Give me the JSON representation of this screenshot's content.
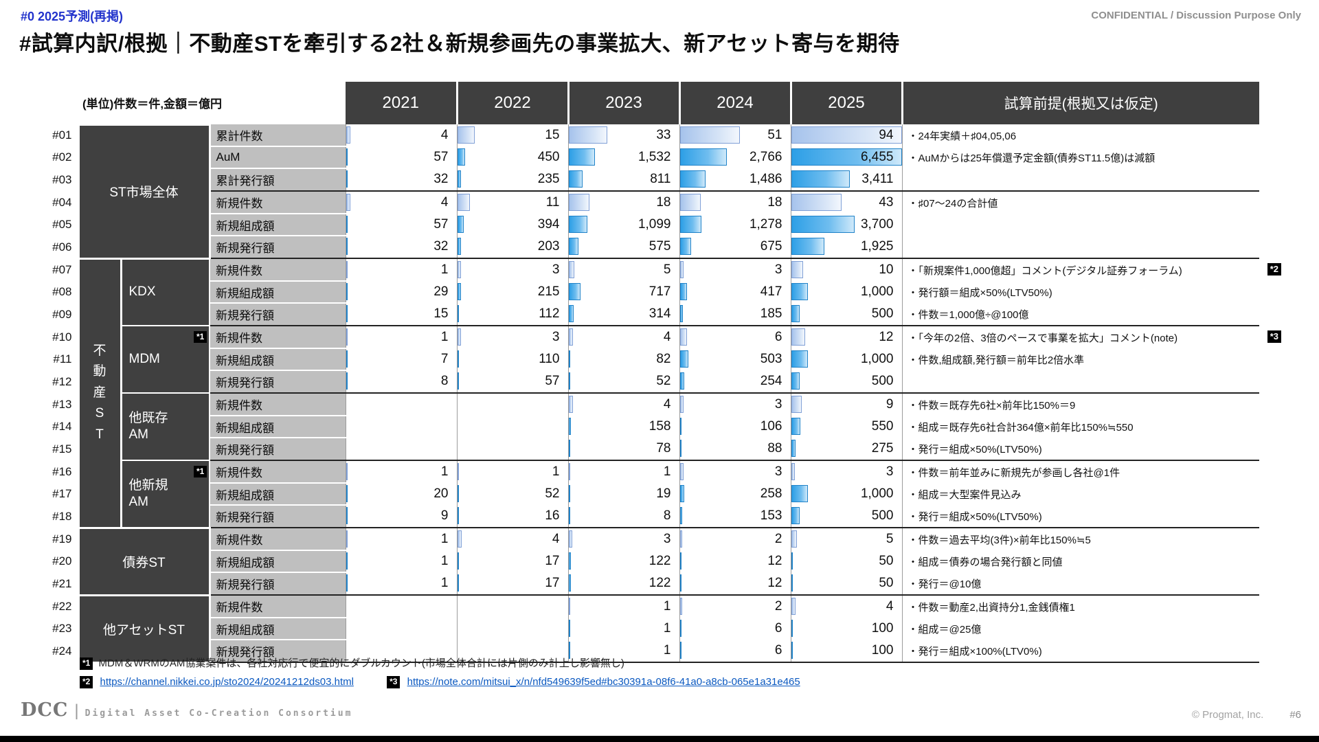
{
  "page": {
    "tag": "#0 2025予測(再掲)",
    "confidential": "CONFIDENTIAL / Discussion Purpose Only",
    "title": "#試算内訳/根拠｜不動産STを牽引する2社＆新規参画先の事業拡大、新アセット寄与を期待",
    "unit_note": "(単位)件数＝件,金額＝億円"
  },
  "table": {
    "year_headers": [
      "2021",
      "2022",
      "2023",
      "2024",
      "2025"
    ],
    "assumption_header": "試算前提(根拠又は仮定)",
    "bar_scale": {
      "count_max": 94,
      "amount_max": 6455
    },
    "bar_colors": {
      "count": "#a6c3ec",
      "amount": "#2d9fe6"
    },
    "groups": [
      {
        "label": "ST市場全体",
        "vertical": false,
        "subgroups": [
          {
            "label": null,
            "rows": [
              {
                "id": "#01",
                "metric": "累計件数",
                "kind": "count",
                "values": [
                  "4",
                  "15",
                  "33",
                  "51",
                  "94"
                ],
                "note": "・24年実績＋♯04,05,06"
              },
              {
                "id": "#02",
                "metric": "AuM",
                "kind": "amount",
                "values": [
                  "57",
                  "450",
                  "1,532",
                  "2,766",
                  "6,455"
                ],
                "note": "・AuMからは25年償還予定金額(債券ST11.5億)は減額"
              },
              {
                "id": "#03",
                "metric": "累計発行額",
                "kind": "amount",
                "values": [
                  "32",
                  "235",
                  "811",
                  "1,486",
                  "3,411"
                ],
                "note": ""
              },
              {
                "id": "#04",
                "metric": "新規件数",
                "kind": "count",
                "values": [
                  "4",
                  "11",
                  "18",
                  "18",
                  "43"
                ],
                "note": "・♯07〜24の合計値",
                "sep": true
              },
              {
                "id": "#05",
                "metric": "新規組成額",
                "kind": "amount",
                "values": [
                  "57",
                  "394",
                  "1,099",
                  "1,278",
                  "3,700"
                ],
                "note": ""
              },
              {
                "id": "#06",
                "metric": "新規発行額",
                "kind": "amount",
                "values": [
                  "32",
                  "203",
                  "575",
                  "675",
                  "1,925"
                ],
                "note": ""
              }
            ]
          }
        ]
      },
      {
        "label": "不動産ST",
        "vertical": true,
        "subgroups": [
          {
            "label": "KDX",
            "rows": [
              {
                "id": "#07",
                "metric": "新規件数",
                "kind": "count",
                "values": [
                  "1",
                  "3",
                  "5",
                  "3",
                  "10"
                ],
                "note": "・「新規案件1,000億超」コメント(デジタル証券フォーラム)",
                "note_badge": "*2"
              },
              {
                "id": "#08",
                "metric": "新規組成額",
                "kind": "amount",
                "values": [
                  "29",
                  "215",
                  "717",
                  "417",
                  "1,000"
                ],
                "note": "・発行額＝組成×50%(LTV50%)"
              },
              {
                "id": "#09",
                "metric": "新規発行額",
                "kind": "amount",
                "values": [
                  "15",
                  "112",
                  "314",
                  "185",
                  "500"
                ],
                "note": "・件数＝1,000億÷@100億"
              }
            ]
          },
          {
            "label": "MDM",
            "rows": [
              {
                "id": "#10",
                "metric": "新規件数",
                "metric_badge": "*1",
                "kind": "count",
                "values": [
                  "1",
                  "3",
                  "4",
                  "6",
                  "12"
                ],
                "note": "・「今年の2倍、3倍のペースで事業を拡大」コメント(note)",
                "note_badge": "*3"
              },
              {
                "id": "#11",
                "metric": "新規組成額",
                "kind": "amount",
                "values": [
                  "7",
                  "110",
                  "82",
                  "503",
                  "1,000"
                ],
                "note": "・件数,組成額,発行額＝前年比2倍水準"
              },
              {
                "id": "#12",
                "metric": "新規発行額",
                "kind": "amount",
                "values": [
                  "8",
                  "57",
                  "52",
                  "254",
                  "500"
                ],
                "note": ""
              }
            ]
          },
          {
            "label": "他既存\nAM",
            "rows": [
              {
                "id": "#13",
                "metric": "新規件数",
                "kind": "count",
                "values": [
                  "",
                  "",
                  "4",
                  "3",
                  "9"
                ],
                "note": "・件数＝既存先6社×前年比150%＝9"
              },
              {
                "id": "#14",
                "metric": "新規組成額",
                "kind": "amount",
                "values": [
                  "",
                  "",
                  "158",
                  "106",
                  "550"
                ],
                "note": "・組成＝既存先6社合計364億×前年比150%≒550"
              },
              {
                "id": "#15",
                "metric": "新規発行額",
                "kind": "amount",
                "values": [
                  "",
                  "",
                  "78",
                  "88",
                  "275"
                ],
                "note": "・発行＝組成×50%(LTV50%)"
              }
            ]
          },
          {
            "label": "他新規\nAM",
            "rows": [
              {
                "id": "#16",
                "metric": "新規件数",
                "metric_badge": "*1",
                "kind": "count",
                "values": [
                  "1",
                  "1",
                  "1",
                  "3",
                  "3"
                ],
                "note": "・件数＝前年並みに新規先が参画し各社@1件"
              },
              {
                "id": "#17",
                "metric": "新規組成額",
                "kind": "amount",
                "values": [
                  "20",
                  "52",
                  "19",
                  "258",
                  "1,000"
                ],
                "note": "・組成＝大型案件見込み"
              },
              {
                "id": "#18",
                "metric": "新規発行額",
                "kind": "amount",
                "values": [
                  "9",
                  "16",
                  "8",
                  "153",
                  "500"
                ],
                "note": "・発行＝組成×50%(LTV50%)"
              }
            ]
          }
        ]
      },
      {
        "label": "債券ST",
        "vertical": false,
        "subgroups": [
          {
            "label": null,
            "rows": [
              {
                "id": "#19",
                "metric": "新規件数",
                "kind": "count",
                "values": [
                  "1",
                  "4",
                  "3",
                  "2",
                  "5"
                ],
                "note": "・件数＝過去平均(3件)×前年比150%≒5"
              },
              {
                "id": "#20",
                "metric": "新規組成額",
                "kind": "amount",
                "values": [
                  "1",
                  "17",
                  "122",
                  "12",
                  "50"
                ],
                "note": "・組成＝債券の場合発行額と同値"
              },
              {
                "id": "#21",
                "metric": "新規発行額",
                "kind": "amount",
                "values": [
                  "1",
                  "17",
                  "122",
                  "12",
                  "50"
                ],
                "note": "・発行＝@10億"
              }
            ]
          }
        ]
      },
      {
        "label": "他アセットST",
        "vertical": false,
        "subgroups": [
          {
            "label": null,
            "rows": [
              {
                "id": "#22",
                "metric": "新規件数",
                "kind": "count",
                "values": [
                  "",
                  "",
                  "1",
                  "2",
                  "4"
                ],
                "note": "・件数＝動産2,出資持分1,金銭債権1"
              },
              {
                "id": "#23",
                "metric": "新規組成額",
                "kind": "amount",
                "values": [
                  "",
                  "",
                  "1",
                  "6",
                  "100"
                ],
                "note": "・組成＝@25億"
              },
              {
                "id": "#24",
                "metric": "新規発行額",
                "kind": "amount",
                "values": [
                  "",
                  "",
                  "1",
                  "6",
                  "100"
                ],
                "note": "・発行＝組成×100%(LTV0%)"
              }
            ]
          }
        ]
      }
    ]
  },
  "footnotes": {
    "note1_badge": "*1",
    "note1": "MDM＆WRMのAM協業案件は、各社対応行で便宜的にダブルカウント(市場全体合計には片側のみ計上し影響無し)",
    "note2_badge": "*2",
    "note2_link": "https://channel.nikkei.co.jp/sto2024/20241212ds03.html",
    "note3_badge": "*3",
    "note3_link": "https://note.com/mitsui_x/n/nfd549639f5ed#bc30391a-08f6-41a0-a8cb-065e1a31e465"
  },
  "footer": {
    "logo": "DCC",
    "logo_text": "Digital Asset Co-Creation Consortium",
    "copyright": "© Progmat, Inc.",
    "page_number": "#6"
  }
}
